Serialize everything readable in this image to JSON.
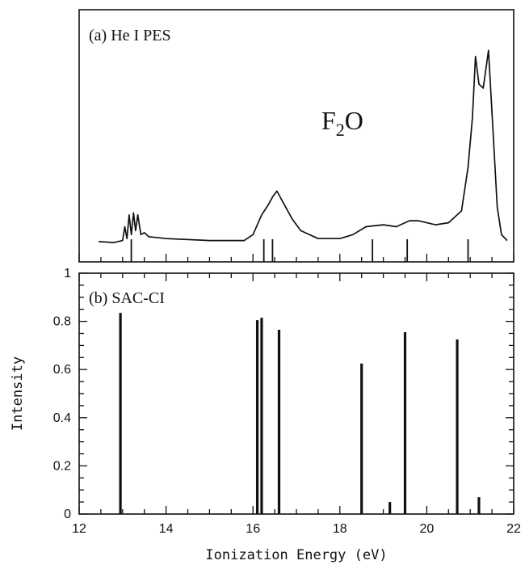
{
  "chart_data": [
    {
      "type": "line",
      "panel_label": "(a) He I PES",
      "molecule": {
        "base": "F",
        "sub": "2",
        "rest": "O"
      },
      "xlim": [
        12,
        22
      ],
      "spectrum": [
        [
          12.45,
          0.025
        ],
        [
          12.8,
          0.02
        ],
        [
          13.0,
          0.03
        ],
        [
          13.05,
          0.1
        ],
        [
          13.1,
          0.04
        ],
        [
          13.15,
          0.16
        ],
        [
          13.2,
          0.06
        ],
        [
          13.25,
          0.17
        ],
        [
          13.3,
          0.08
        ],
        [
          13.35,
          0.16
        ],
        [
          13.42,
          0.06
        ],
        [
          13.5,
          0.07
        ],
        [
          13.6,
          0.05
        ],
        [
          14.0,
          0.04
        ],
        [
          15.0,
          0.03
        ],
        [
          15.8,
          0.03
        ],
        [
          16.0,
          0.06
        ],
        [
          16.2,
          0.16
        ],
        [
          16.35,
          0.21
        ],
        [
          16.45,
          0.25
        ],
        [
          16.55,
          0.28
        ],
        [
          16.7,
          0.22
        ],
        [
          16.9,
          0.14
        ],
        [
          17.1,
          0.08
        ],
        [
          17.5,
          0.04
        ],
        [
          18.0,
          0.04
        ],
        [
          18.3,
          0.06
        ],
        [
          18.6,
          0.1
        ],
        [
          19.0,
          0.11
        ],
        [
          19.3,
          0.1
        ],
        [
          19.6,
          0.13
        ],
        [
          19.8,
          0.13
        ],
        [
          20.2,
          0.11
        ],
        [
          20.5,
          0.12
        ],
        [
          20.8,
          0.18
        ],
        [
          20.95,
          0.4
        ],
        [
          21.05,
          0.65
        ],
        [
          21.12,
          0.96
        ],
        [
          21.2,
          0.82
        ],
        [
          21.3,
          0.8
        ],
        [
          21.42,
          0.99
        ],
        [
          21.52,
          0.6
        ],
        [
          21.62,
          0.2
        ],
        [
          21.72,
          0.06
        ],
        [
          21.85,
          0.03
        ]
      ],
      "stick_positions": [
        13.2,
        16.25,
        16.45,
        18.75,
        19.55,
        20.95
      ]
    },
    {
      "type": "bar",
      "panel_label": "(b) SAC-CI",
      "xlabel": "Ionization Energy (eV)",
      "ylabel": "Intensity",
      "xlim": [
        12,
        22
      ],
      "ylim": [
        0,
        1
      ],
      "xticks": [
        "12",
        "14",
        "16",
        "18",
        "20",
        "22"
      ],
      "yticks": [
        "0",
        "0.2",
        "0.4",
        "0.6",
        "0.8",
        "1"
      ],
      "x": [
        12.95,
        16.1,
        16.2,
        16.6,
        18.5,
        19.15,
        19.5,
        20.7,
        21.2
      ],
      "values": [
        0.835,
        0.805,
        0.815,
        0.765,
        0.625,
        0.05,
        0.755,
        0.725,
        0.07
      ]
    }
  ]
}
